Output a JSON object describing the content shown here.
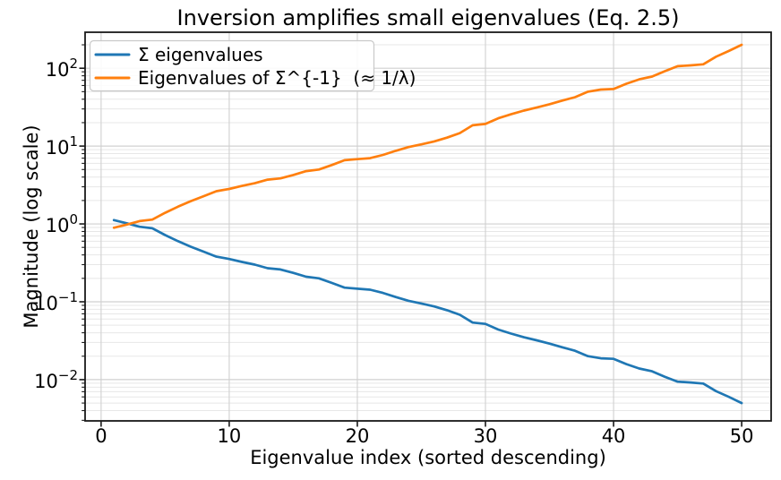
{
  "figure": {
    "background": "#ffffff"
  },
  "chart_data": {
    "type": "line",
    "title": "Inversion amplifies small eigenvalues (Eq. 2.5)",
    "xlabel": "Eigenvalue index (sorted descending)",
    "ylabel": "Magnitude (log scale)",
    "yscale": "log",
    "grid": true,
    "legend_position": "upper left",
    "xlim": [
      -1.25,
      52.3
    ],
    "ylim": [
      0.00295,
      290
    ],
    "x_ticks": [
      0,
      10,
      20,
      30,
      40,
      50
    ],
    "y_tick_exponents": [
      2,
      1,
      0,
      -1,
      -2
    ],
    "x": [
      1,
      2,
      3,
      4,
      5,
      6,
      7,
      8,
      9,
      10,
      11,
      12,
      13,
      14,
      15,
      16,
      17,
      18,
      19,
      20,
      21,
      22,
      23,
      24,
      25,
      26,
      27,
      28,
      29,
      30,
      31,
      32,
      33,
      34,
      35,
      36,
      37,
      38,
      39,
      40,
      41,
      42,
      43,
      44,
      45,
      46,
      47,
      48,
      49,
      50
    ],
    "series": [
      {
        "name": "Σ eigenvalues",
        "color": "#1f77b4",
        "values": [
          1.12,
          1.02,
          0.92,
          0.88,
          0.72,
          0.6,
          0.51,
          0.44,
          0.38,
          0.355,
          0.325,
          0.3,
          0.27,
          0.26,
          0.235,
          0.21,
          0.2,
          0.175,
          0.152,
          0.147,
          0.143,
          0.13,
          0.115,
          0.103,
          0.095,
          0.087,
          0.078,
          0.068,
          0.054,
          0.052,
          0.044,
          0.039,
          0.035,
          0.032,
          0.029,
          0.026,
          0.0235,
          0.02,
          0.0188,
          0.0185,
          0.0158,
          0.0139,
          0.0128,
          0.0109,
          0.0094,
          0.0092,
          0.0089,
          0.0071,
          0.006,
          0.005
        ]
      },
      {
        "name": "Eigenvalues of Σ^{-1}  (≈ 1/λ)",
        "color": "#ff7f0e",
        "values": [
          0.893,
          0.98,
          1.087,
          1.136,
          1.389,
          1.667,
          1.961,
          2.273,
          2.632,
          2.817,
          3.077,
          3.333,
          3.704,
          3.846,
          4.255,
          4.762,
          5.0,
          5.714,
          6.579,
          6.803,
          6.993,
          7.692,
          8.696,
          9.709,
          10.53,
          11.49,
          12.82,
          14.71,
          18.52,
          19.23,
          22.73,
          25.64,
          28.57,
          31.25,
          34.48,
          38.46,
          42.55,
          50.0,
          53.19,
          54.05,
          63.29,
          71.94,
          78.13,
          91.74,
          106.4,
          108.7,
          112.4,
          140.8,
          166.7,
          200.0
        ]
      }
    ],
    "colors": {
      "grid_major": "#d0d0d0",
      "grid_minor": "#e7e7e7",
      "spine": "#1a1a1a",
      "text": "#000000",
      "legend_border": "#c9c9c9",
      "legend_fill": "#ffffff"
    }
  }
}
